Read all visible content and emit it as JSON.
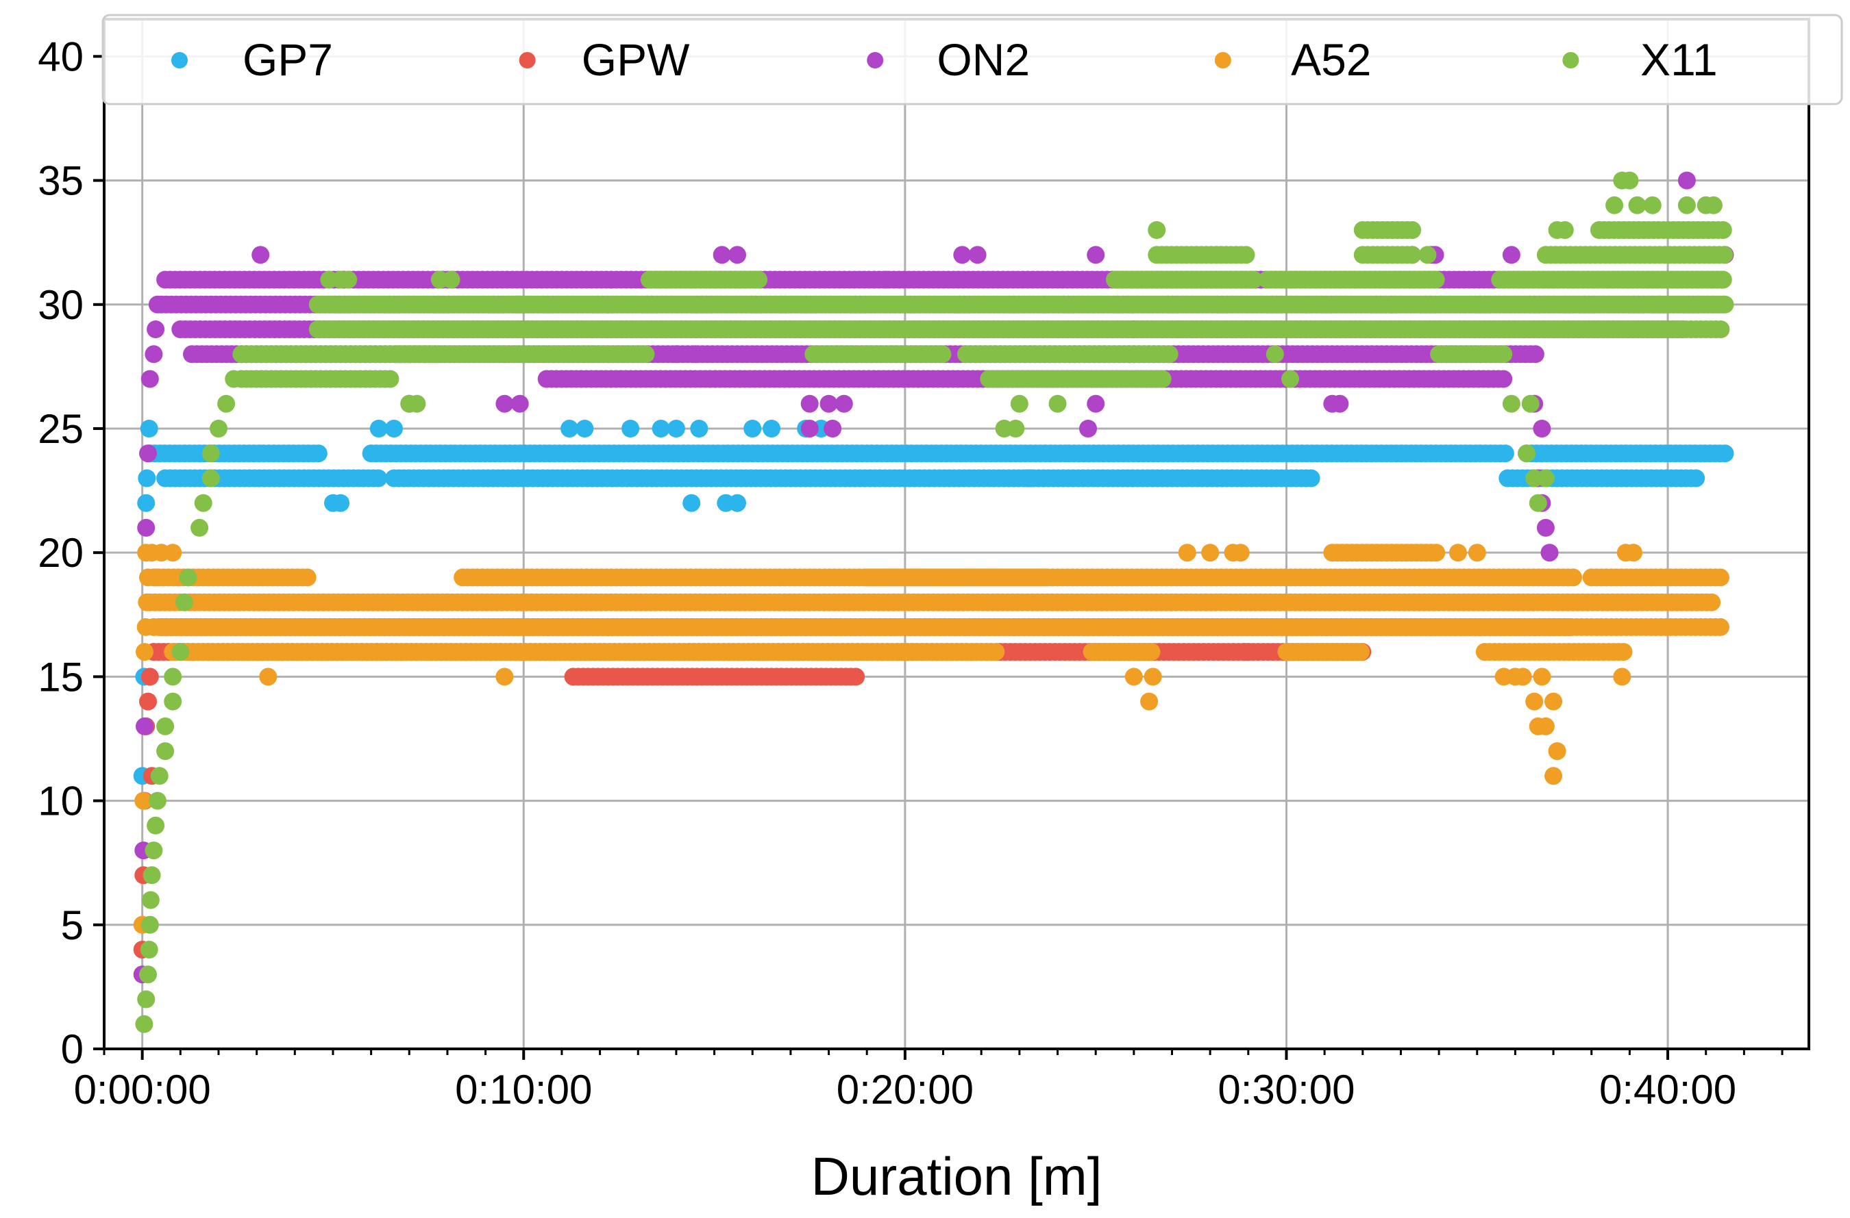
{
  "chart_data": {
    "type": "scatter",
    "title": "",
    "xlabel": "Duration [m]",
    "ylabel": "",
    "x_unit": "minutes",
    "xlim": [
      -1,
      43.7
    ],
    "ylim": [
      0,
      41.5
    ],
    "x_ticks": [
      0,
      10,
      20,
      30,
      40
    ],
    "x_tick_labels": [
      "0:00:00",
      "0:10:00",
      "0:20:00",
      "0:30:00",
      "0:40:00"
    ],
    "y_ticks": [
      0,
      5,
      10,
      15,
      20,
      25,
      30,
      35,
      40
    ],
    "y_tick_labels": [
      "0",
      "5",
      "10",
      "15",
      "20",
      "25",
      "30",
      "35",
      "40"
    ],
    "grid": true,
    "legend_position": "top",
    "series": [
      {
        "name": "GP7",
        "color": "#2cb5ec",
        "startup": [
          [
            0.0,
            11
          ],
          [
            0.05,
            15
          ],
          [
            0.1,
            22
          ],
          [
            0.12,
            23
          ],
          [
            0.18,
            25
          ],
          [
            0.2,
            24
          ]
        ],
        "segments": [
          {
            "x0": 0.2,
            "x1": 4.7,
            "y": 24
          },
          {
            "x0": 0.6,
            "x1": 6.2,
            "y": 23
          },
          {
            "x0": 6.0,
            "x1": 24.3,
            "y": 24
          },
          {
            "x0": 6.6,
            "x1": 30.7,
            "y": 23
          },
          {
            "x0": 24.3,
            "x1": 35.8,
            "y": 24
          },
          {
            "x0": 35.8,
            "x1": 40.8,
            "y": 23
          },
          {
            "x0": 36.3,
            "x1": 41.5,
            "y": 24
          }
        ],
        "points": [
          [
            5.0,
            22
          ],
          [
            5.2,
            22
          ],
          [
            6.2,
            25
          ],
          [
            6.6,
            25
          ],
          [
            11.2,
            25
          ],
          [
            11.6,
            25
          ],
          [
            12.8,
            25
          ],
          [
            13.6,
            25
          ],
          [
            14.0,
            25
          ],
          [
            14.6,
            25
          ],
          [
            14.4,
            22
          ],
          [
            15.3,
            22
          ],
          [
            15.6,
            22
          ],
          [
            16.0,
            25
          ],
          [
            16.5,
            25
          ],
          [
            17.4,
            25
          ],
          [
            17.8,
            25
          ],
          [
            23.2,
            23
          ],
          [
            23.3,
            23
          ]
        ]
      },
      {
        "name": "GPW",
        "color": "#e8574a",
        "startup": [
          [
            0.0,
            4
          ],
          [
            0.03,
            7
          ],
          [
            0.06,
            10
          ],
          [
            0.1,
            13
          ],
          [
            0.15,
            14
          ],
          [
            0.2,
            15
          ],
          [
            0.25,
            11
          ],
          [
            0.3,
            16
          ]
        ],
        "segments": [
          {
            "x0": 0.3,
            "x1": 22.5,
            "y": 16
          },
          {
            "x0": 0.5,
            "x1": 37.5,
            "y": 17
          },
          {
            "x0": 11.3,
            "x1": 18.8,
            "y": 15
          },
          {
            "x0": 22.5,
            "x1": 32.0,
            "y": 16
          }
        ],
        "points": [
          [
            28.9,
            16
          ],
          [
            29.0,
            16
          ]
        ]
      },
      {
        "name": "ON2",
        "color": "#b044c8",
        "startup": [
          [
            0.0,
            3
          ],
          [
            0.03,
            8
          ],
          [
            0.06,
            13
          ],
          [
            0.1,
            21
          ],
          [
            0.15,
            24
          ],
          [
            0.2,
            27
          ],
          [
            0.3,
            28
          ],
          [
            0.35,
            29
          ],
          [
            0.4,
            30
          ]
        ],
        "segments": [
          {
            "x0": 0.5,
            "x1": 41.5,
            "y": 30
          },
          {
            "x0": 0.6,
            "x1": 41.5,
            "y": 31
          },
          {
            "x0": 1.0,
            "x1": 40.5,
            "y": 29
          },
          {
            "x0": 1.3,
            "x1": 36.6,
            "y": 28
          },
          {
            "x0": 10.6,
            "x1": 35.8,
            "y": 27
          }
        ],
        "points": [
          [
            3.1,
            32
          ],
          [
            15.2,
            32
          ],
          [
            15.6,
            32
          ],
          [
            21.5,
            32
          ],
          [
            21.9,
            32
          ],
          [
            25.0,
            32
          ],
          [
            33.3,
            32
          ],
          [
            33.8,
            32
          ],
          [
            33.9,
            32
          ],
          [
            35.9,
            32
          ],
          [
            40.5,
            35
          ],
          [
            41.5,
            32
          ],
          [
            9.5,
            26
          ],
          [
            9.9,
            26
          ],
          [
            17.5,
            26
          ],
          [
            18.0,
            26
          ],
          [
            18.4,
            26
          ],
          [
            25.0,
            26
          ],
          [
            31.2,
            26
          ],
          [
            31.4,
            26
          ],
          [
            36.5,
            26
          ],
          [
            36.7,
            25
          ],
          [
            36.6,
            23
          ],
          [
            36.7,
            22
          ],
          [
            36.8,
            21
          ],
          [
            36.9,
            20
          ],
          [
            17.5,
            25
          ],
          [
            18.1,
            25
          ],
          [
            24.8,
            25
          ],
          [
            7.0,
            26
          ],
          [
            14.0,
            28
          ],
          [
            14.5,
            28
          ],
          [
            19.5,
            31
          ],
          [
            26.0,
            29
          ],
          [
            27.2,
            29
          ]
        ]
      },
      {
        "name": "A52",
        "color": "#f19e24",
        "startup": [
          [
            0.0,
            5
          ],
          [
            0.03,
            10
          ],
          [
            0.06,
            16
          ],
          [
            0.09,
            17
          ],
          [
            0.12,
            18
          ],
          [
            0.15,
            19
          ],
          [
            0.25,
            20
          ],
          [
            0.35,
            19
          ]
        ],
        "segments": [
          {
            "x0": 0.2,
            "x1": 41.2,
            "y": 18
          },
          {
            "x0": 0.3,
            "x1": 41.5,
            "y": 17
          },
          {
            "x0": 0.3,
            "x1": 4.4,
            "y": 19
          },
          {
            "x0": 8.4,
            "x1": 37.6,
            "y": 19
          },
          {
            "x0": 19.0,
            "x1": 23.8,
            "y": 19
          },
          {
            "x0": 38.0,
            "x1": 41.5,
            "y": 19
          },
          {
            "x0": 0.8,
            "x1": 22.5,
            "y": 16
          },
          {
            "x0": 24.9,
            "x1": 26.5,
            "y": 16
          },
          {
            "x0": 30.0,
            "x1": 32.0,
            "y": 16
          },
          {
            "x0": 31.2,
            "x1": 34.0,
            "y": 20
          },
          {
            "x0": 35.2,
            "x1": 38.9,
            "y": 16
          }
        ],
        "points": [
          [
            0.1,
            20
          ],
          [
            0.5,
            20
          ],
          [
            0.8,
            20
          ],
          [
            3.3,
            15
          ],
          [
            9.5,
            15
          ],
          [
            26.4,
            14
          ],
          [
            26.0,
            15
          ],
          [
            26.5,
            15
          ],
          [
            27.4,
            20
          ],
          [
            28.0,
            20
          ],
          [
            28.6,
            20
          ],
          [
            28.8,
            20
          ],
          [
            34.5,
            20
          ],
          [
            35.0,
            20
          ],
          [
            35.7,
            15
          ],
          [
            36.0,
            15
          ],
          [
            36.2,
            15
          ],
          [
            36.5,
            14
          ],
          [
            36.6,
            13
          ],
          [
            36.8,
            13
          ],
          [
            36.7,
            15
          ],
          [
            37.0,
            14
          ],
          [
            37.1,
            12
          ],
          [
            37.0,
            11
          ],
          [
            38.8,
            15
          ],
          [
            38.9,
            20
          ],
          [
            39.1,
            20
          ]
        ]
      },
      {
        "name": "X11",
        "color": "#84bf48",
        "startup": [
          [
            0.05,
            1
          ],
          [
            0.1,
            2
          ],
          [
            0.15,
            3
          ],
          [
            0.18,
            4
          ],
          [
            0.2,
            5
          ],
          [
            0.22,
            6
          ],
          [
            0.25,
            7
          ],
          [
            0.3,
            8
          ],
          [
            0.35,
            9
          ],
          [
            0.4,
            10
          ],
          [
            0.45,
            11
          ],
          [
            0.6,
            12
          ],
          [
            0.6,
            13
          ],
          [
            0.8,
            14
          ],
          [
            0.8,
            15
          ],
          [
            1.0,
            16
          ],
          [
            1.1,
            18
          ],
          [
            1.2,
            19
          ],
          [
            1.5,
            21
          ],
          [
            1.6,
            22
          ],
          [
            1.8,
            23
          ],
          [
            1.8,
            24
          ],
          [
            2.0,
            25
          ],
          [
            2.2,
            26
          ],
          [
            2.4,
            27
          ],
          [
            2.6,
            28
          ]
        ],
        "segments": [
          {
            "x0": 2.6,
            "x1": 7.6,
            "y": 28
          },
          {
            "x0": 2.6,
            "x1": 6.5,
            "y": 27
          },
          {
            "x0": 4.6,
            "x1": 41.5,
            "y": 29
          },
          {
            "x0": 4.6,
            "x1": 41.5,
            "y": 30
          },
          {
            "x0": 6.7,
            "x1": 13.3,
            "y": 28
          },
          {
            "x0": 13.3,
            "x1": 16.2,
            "y": 31
          },
          {
            "x0": 17.6,
            "x1": 21.0,
            "y": 28
          },
          {
            "x0": 21.6,
            "x1": 27.0,
            "y": 28
          },
          {
            "x0": 22.2,
            "x1": 26.8,
            "y": 27
          },
          {
            "x0": 25.5,
            "x1": 29.2,
            "y": 31
          },
          {
            "x0": 26.6,
            "x1": 29.0,
            "y": 32
          },
          {
            "x0": 29.5,
            "x1": 34.0,
            "y": 31
          },
          {
            "x0": 32.0,
            "x1": 33.4,
            "y": 32
          },
          {
            "x0": 32.0,
            "x1": 33.3,
            "y": 33
          },
          {
            "x0": 34.0,
            "x1": 35.7,
            "y": 28
          },
          {
            "x0": 35.6,
            "x1": 41.5,
            "y": 31
          },
          {
            "x0": 36.8,
            "x1": 41.5,
            "y": 32
          },
          {
            "x0": 38.2,
            "x1": 41.5,
            "y": 33
          }
        ],
        "points": [
          [
            4.9,
            31
          ],
          [
            5.2,
            31
          ],
          [
            5.4,
            31
          ],
          [
            7.8,
            31
          ],
          [
            8.1,
            31
          ],
          [
            9.8,
            30
          ],
          [
            9.9,
            30
          ],
          [
            7.0,
            26
          ],
          [
            7.2,
            26
          ],
          [
            24.0,
            26
          ],
          [
            23.0,
            26
          ],
          [
            22.6,
            25
          ],
          [
            22.9,
            25
          ],
          [
            26.6,
            33
          ],
          [
            29.7,
            28
          ],
          [
            30.1,
            27
          ],
          [
            33.7,
            32
          ],
          [
            35.9,
            26
          ],
          [
            36.3,
            24
          ],
          [
            36.5,
            23
          ],
          [
            36.6,
            22
          ],
          [
            36.8,
            23
          ],
          [
            36.4,
            26
          ],
          [
            37.1,
            33
          ],
          [
            37.3,
            33
          ],
          [
            38.6,
            34
          ],
          [
            38.8,
            35
          ],
          [
            39.0,
            35
          ],
          [
            39.2,
            34
          ],
          [
            39.6,
            34
          ],
          [
            40.5,
            34
          ],
          [
            41.0,
            34
          ],
          [
            41.2,
            34
          ],
          [
            41.5,
            30
          ],
          [
            39.8,
            30
          ]
        ]
      }
    ]
  }
}
